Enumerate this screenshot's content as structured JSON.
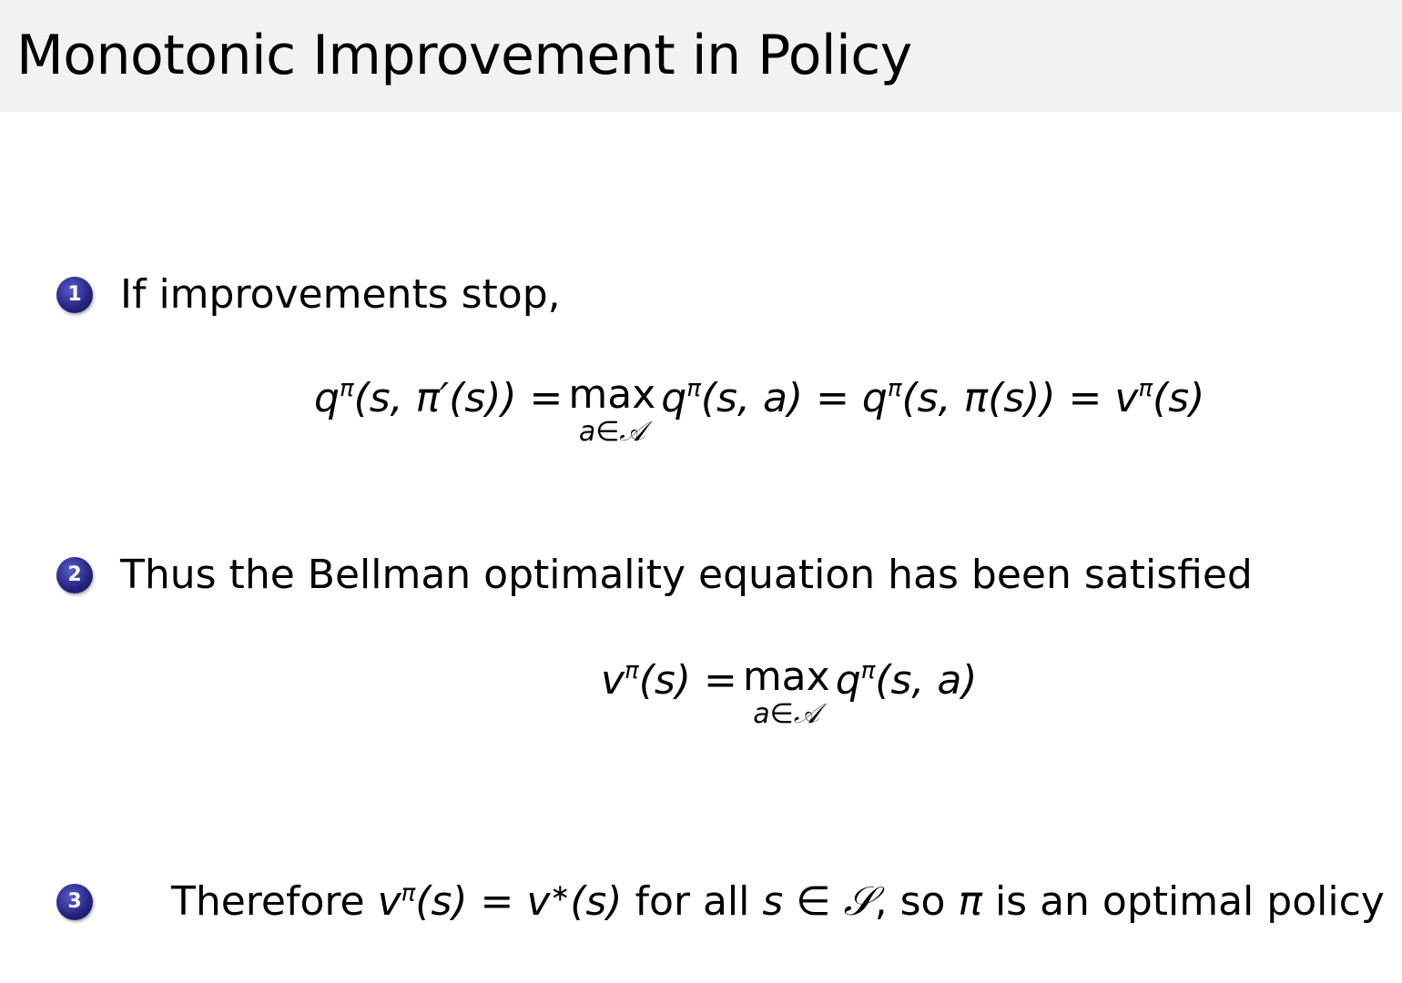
{
  "title": "Monotonic Improvement in Policy",
  "items": [
    {
      "number": "1",
      "text": "If improvements stop,"
    },
    {
      "number": "2",
      "text": "Thus the Bellman optimality equation has been satisfied"
    },
    {
      "number": "3",
      "text_prefix": "Therefore ",
      "math1": "v",
      "sup1": "π",
      "math1b": "(s) = v",
      "sup2": "∗",
      "math1c": "(s)",
      "text_mid": " for all ",
      "math2": "s ∈ 𝒮",
      "text_mid2": ", so ",
      "math3": "π",
      "text_suffix": " is an optimal policy"
    }
  ],
  "equation1": {
    "lhs": "q",
    "lhs_sup": "π",
    "lhs_args": "(s, π′(s)) =",
    "max": "max",
    "max_sub": "a∈𝒜",
    "rhs": "q",
    "rhs_sup": "π",
    "rhs_args": "(s, a) = q",
    "rhs2_sup": "π",
    "rhs2_args": "(s, π(s)) = v",
    "rhs3_sup": "π",
    "rhs3_args": "(s)"
  },
  "equation2": {
    "lhs": "v",
    "lhs_sup": "π",
    "lhs_args": "(s) =",
    "max": "max",
    "max_sub": "a∈𝒜",
    "rhs": "q",
    "rhs_sup": "π",
    "rhs_args": "(s, a)"
  },
  "colors": {
    "titlebar": "#f2f2f2",
    "bullet": "#23237e"
  }
}
